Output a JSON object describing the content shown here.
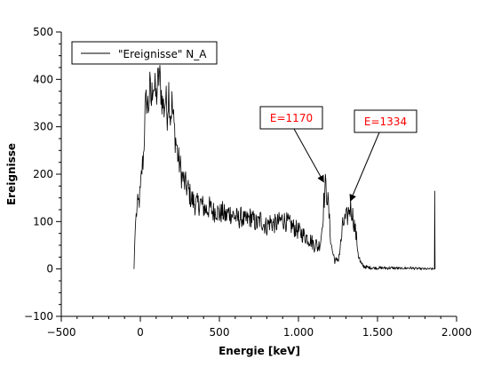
{
  "chart_data": {
    "type": "line",
    "title": "",
    "xlabel": "Energie [keV]",
    "ylabel": "Ereignisse",
    "xlim": [
      -500,
      2000
    ],
    "ylim": [
      -100,
      500
    ],
    "x_ticks": [
      -500,
      0,
      500,
      1000,
      1500,
      2000
    ],
    "x_tick_labels": [
      "−500",
      "0",
      "500",
      "1.000",
      "1.500",
      "2.000"
    ],
    "y_ticks": [
      -100,
      0,
      100,
      200,
      300,
      400,
      500
    ],
    "y_tick_labels": [
      "−100",
      "0",
      "100",
      "200",
      "300",
      "400",
      "500"
    ],
    "grid": false,
    "legend": {
      "position": "top-left",
      "entries": [
        "\"Ereignisse\" N_A"
      ]
    },
    "series": [
      {
        "name": "\"Ereignisse\" N_A",
        "color": "#000000",
        "x": [
          -40,
          -35,
          -30,
          -20,
          -10,
          0,
          10,
          20,
          30,
          40,
          50,
          60,
          70,
          80,
          90,
          100,
          110,
          120,
          130,
          140,
          150,
          160,
          170,
          180,
          190,
          200,
          210,
          220,
          230,
          240,
          250,
          260,
          270,
          280,
          290,
          300,
          320,
          340,
          360,
          380,
          400,
          420,
          440,
          460,
          480,
          500,
          520,
          540,
          560,
          580,
          600,
          620,
          640,
          660,
          680,
          700,
          720,
          740,
          760,
          780,
          800,
          820,
          840,
          860,
          880,
          900,
          920,
          940,
          960,
          980,
          1000,
          1020,
          1040,
          1060,
          1080,
          1100,
          1110,
          1120,
          1130,
          1140,
          1150,
          1160,
          1170,
          1180,
          1190,
          1200,
          1210,
          1220,
          1230,
          1240,
          1250,
          1260,
          1270,
          1280,
          1290,
          1300,
          1310,
          1320,
          1330,
          1340,
          1350,
          1360,
          1370,
          1380,
          1390,
          1400,
          1420,
          1440,
          1460,
          1480,
          1500,
          1550,
          1600,
          1650,
          1700,
          1750,
          1800,
          1840,
          1860,
          1862,
          1864
        ],
        "y": [
          0,
          60,
          100,
          130,
          140,
          160,
          210,
          240,
          330,
          360,
          340,
          380,
          350,
          400,
          380,
          360,
          390,
          410,
          380,
          350,
          340,
          360,
          330,
          380,
          320,
          350,
          310,
          280,
          260,
          230,
          220,
          200,
          190,
          180,
          175,
          170,
          150,
          140,
          135,
          140,
          130,
          125,
          130,
          120,
          125,
          115,
          120,
          110,
          120,
          115,
          110,
          105,
          110,
          100,
          105,
          110,
          100,
          95,
          105,
          95,
          90,
          100,
          95,
          95,
          100,
          105,
          100,
          95,
          90,
          85,
          80,
          75,
          70,
          65,
          60,
          50,
          55,
          45,
          50,
          60,
          90,
          140,
          175,
          160,
          130,
          80,
          45,
          30,
          20,
          15,
          20,
          35,
          60,
          90,
          100,
          105,
          110,
          125,
          130,
          120,
          100,
          80,
          55,
          30,
          15,
          8,
          5,
          3,
          3,
          2,
          2,
          2,
          2,
          1,
          2,
          1,
          0,
          0,
          0,
          165,
          0
        ],
        "noise": true
      }
    ],
    "annotations": [
      {
        "text": "E=1170",
        "color": "#ff0000",
        "target_x": 1170,
        "target_y": 180
      },
      {
        "text": "E=1334",
        "color": "#ff0000",
        "target_x": 1340,
        "target_y": 140
      }
    ]
  }
}
